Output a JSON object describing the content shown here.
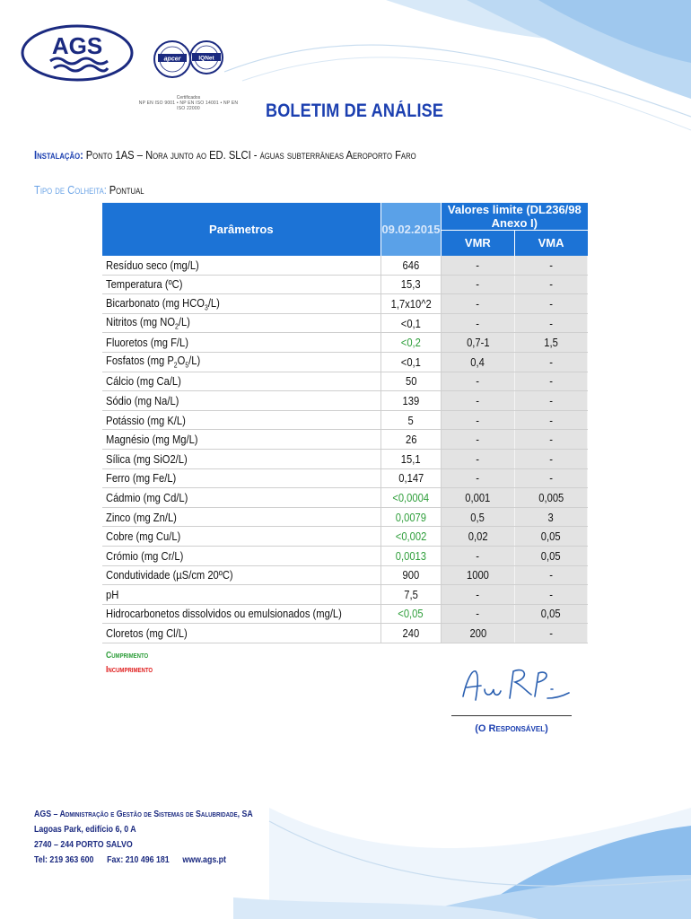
{
  "header": {
    "logo_text": "AGS",
    "cert_brand": "apcer",
    "cert_network": "IQNet",
    "cert_caption_1": "Certificados",
    "cert_caption_2": "NP EN ISO 9001 • NP EN ISO 14001 • NP EN ISO 22000",
    "title": "BOLETIM DE ANÁLISE"
  },
  "installation": {
    "label": "Instalação:",
    "value": "Ponto 1AS – Nora junto ao ED. SLCI - águas subterrâneas Aeroporto Faro"
  },
  "collection": {
    "label": "Tipo de Colheita:",
    "value": "Pontual"
  },
  "table": {
    "col_parameters": "Parâmetros",
    "col_date": "09.02.2015",
    "col_limits": "Valores limite (DL236/98 Anexo I)",
    "col_vmr": "VMR",
    "col_vma": "VMA",
    "rows": [
      {
        "name": "Resíduo seco (mg/L)",
        "value": "646",
        "vmr": "-",
        "vma": "-",
        "ok": false
      },
      {
        "name": "Temperatura (ºC)",
        "value": "15,3",
        "vmr": "-",
        "vma": "-",
        "ok": false
      },
      {
        "name": "Bicarbonato (mg HCO3/L)",
        "value": "1,7x10^2",
        "vmr": "-",
        "vma": "-",
        "ok": false
      },
      {
        "name": "Nitritos (mg NO2/L)",
        "value": "<0,1",
        "vmr": "-",
        "vma": "-",
        "ok": false
      },
      {
        "name": "Fluoretos (mg F/L)",
        "value": "<0,2",
        "vmr": "0,7-1",
        "vma": "1,5",
        "ok": true
      },
      {
        "name": "Fosfatos (mg P2O5/L)",
        "value": "<0,1",
        "vmr": "0,4",
        "vma": "-",
        "ok": false
      },
      {
        "name": "Cálcio (mg Ca/L)",
        "value": "50",
        "vmr": "-",
        "vma": "-",
        "ok": false
      },
      {
        "name": "Sódio (mg Na/L)",
        "value": "139",
        "vmr": "-",
        "vma": "-",
        "ok": false
      },
      {
        "name": "Potássio (mg K/L)",
        "value": "5",
        "vmr": "-",
        "vma": "-",
        "ok": false
      },
      {
        "name": "Magnésio (mg Mg/L)",
        "value": "26",
        "vmr": "-",
        "vma": "-",
        "ok": false
      },
      {
        "name": "Sílica (mg SiO2/L)",
        "value": "15,1",
        "vmr": "-",
        "vma": "-",
        "ok": false
      },
      {
        "name": "Ferro (mg Fe/L)",
        "value": "0,147",
        "vmr": "-",
        "vma": "-",
        "ok": false
      },
      {
        "name": "Cádmio (mg Cd/L)",
        "value": "<0,0004",
        "vmr": "0,001",
        "vma": "0,005",
        "ok": true
      },
      {
        "name": "Zinco (mg Zn/L)",
        "value": "0,0079",
        "vmr": "0,5",
        "vma": "3",
        "ok": true
      },
      {
        "name": "Cobre (mg Cu/L)",
        "value": "<0,002",
        "vmr": "0,02",
        "vma": "0,05",
        "ok": true
      },
      {
        "name": "Crómio (mg Cr/L)",
        "value": "0,0013",
        "vmr": "-",
        "vma": "0,05",
        "ok": true
      },
      {
        "name": "Condutividade (µS/cm 20ºC)",
        "value": "900",
        "vmr": "1000",
        "vma": "-",
        "ok": false
      },
      {
        "name": "pH",
        "value": "7,5",
        "vmr": "-",
        "vma": "-",
        "ok": false
      },
      {
        "name": "Hidrocarbonetos dissolvidos ou emulsionados (mg/L)",
        "value": "<0,05",
        "vmr": "-",
        "vma": "0,05",
        "ok": true
      },
      {
        "name": "Cloretos (mg Cl/L)",
        "value": "240",
        "vmr": "200",
        "vma": "-",
        "ok": false
      }
    ]
  },
  "legend": {
    "compliance": "Cumprimento",
    "noncompliance": "Incumprimento"
  },
  "signature": {
    "label": "(O Responsável)"
  },
  "footer": {
    "company": "AGS – Administração e Gestão de Sistemas de Salubridade, SA",
    "address_1": "Lagoas Park, edifício 6,  0 A",
    "address_2": "2740 – 244 PORTO SALVO",
    "tel": "Tel: 219 363 600",
    "fax": "Fax: 210 496 181",
    "web": "www.ags.pt"
  },
  "colors": {
    "accent": "#1b3fb0",
    "header_blue": "#1c73d6",
    "compliance_green": "#2e9e3a",
    "noncompliance_red": "#e02020"
  }
}
